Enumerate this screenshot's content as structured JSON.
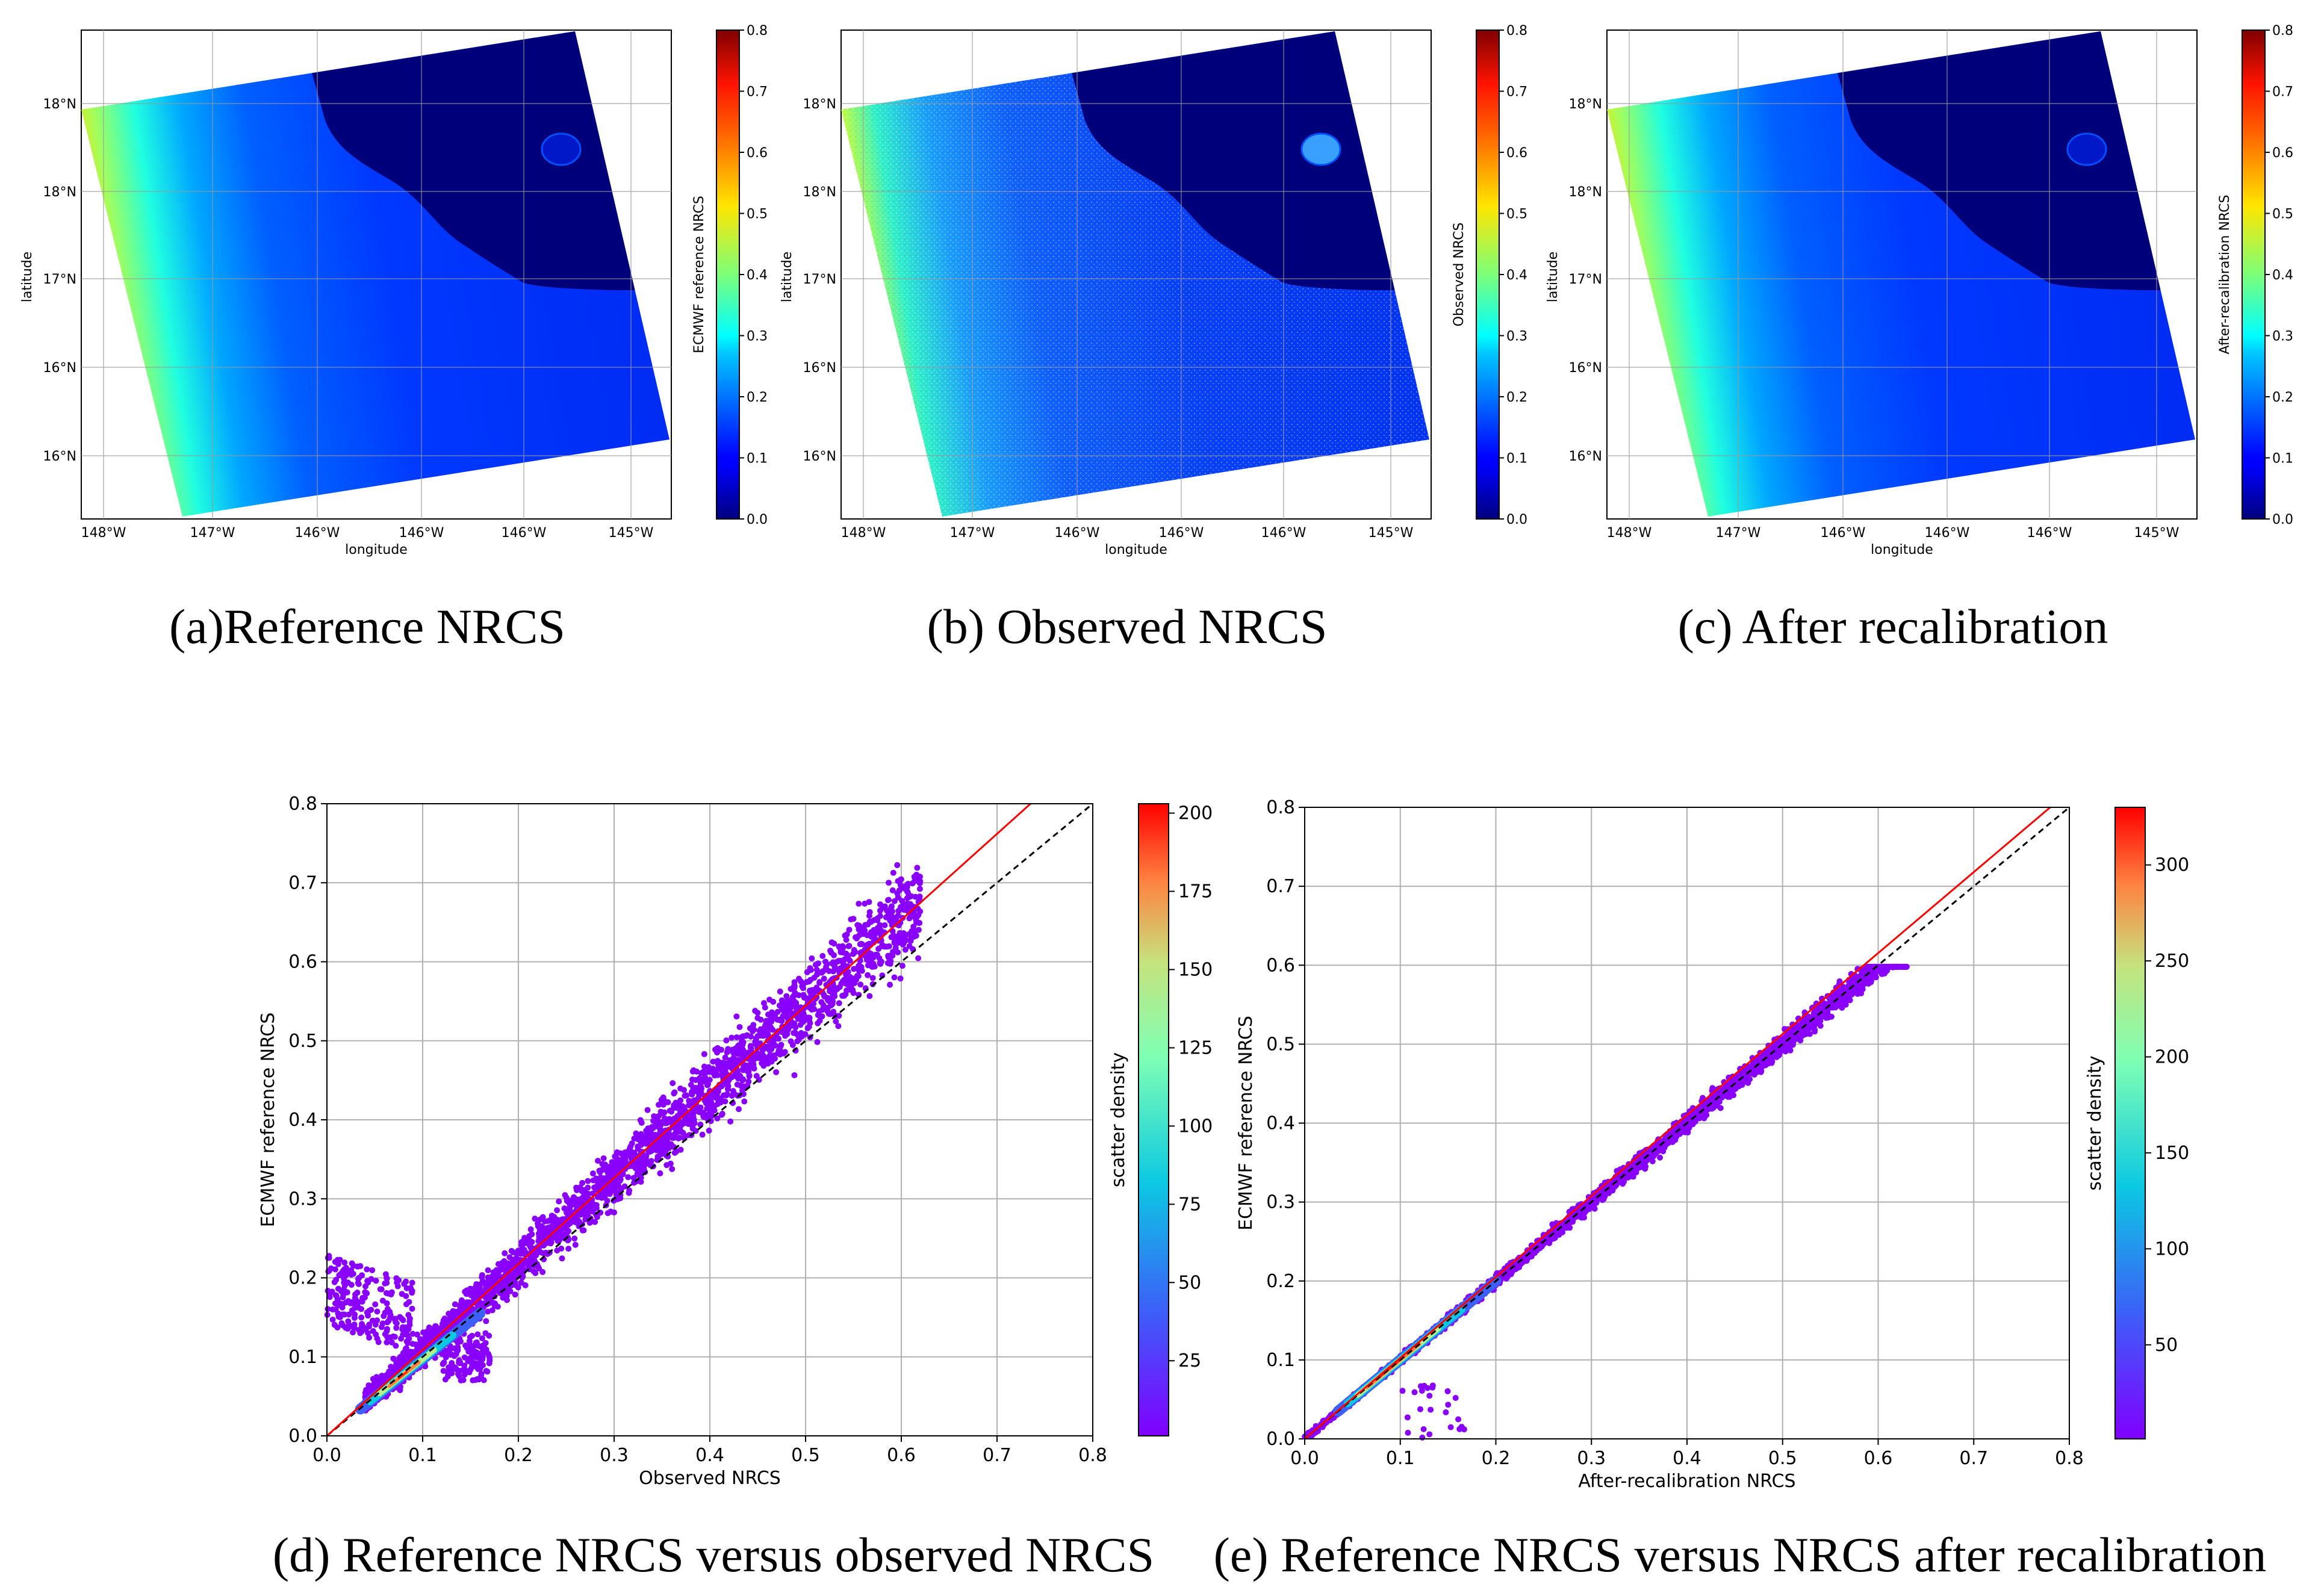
{
  "chart_data": [
    {
      "type": "heatmap",
      "id": "a",
      "caption": "(a)Reference NRCS",
      "xlabel": "longitude",
      "ylabel": "latitude",
      "xticks": [
        "148°W",
        "147°W",
        "146°W",
        "146°W",
        "146°W",
        "145°W"
      ],
      "yticks": [
        "18°N",
        "18°N",
        "17°N",
        "16°N",
        "16°N"
      ],
      "colorbar": {
        "label": "ECMWF reference NRCS",
        "range": [
          0.0,
          0.8
        ],
        "ticks": [
          "0.0",
          "0.1",
          "0.2",
          "0.3",
          "0.4",
          "0.5",
          "0.6",
          "0.7",
          "0.8"
        ]
      }
    },
    {
      "type": "heatmap",
      "id": "b",
      "caption": "(b) Observed NRCS",
      "xlabel": "longitude",
      "ylabel": "latitude",
      "xticks": [
        "148°W",
        "147°W",
        "146°W",
        "146°W",
        "146°W",
        "145°W"
      ],
      "yticks": [
        "18°N",
        "18°N",
        "17°N",
        "16°N",
        "16°N"
      ],
      "colorbar": {
        "label": "Observed NRCS",
        "range": [
          0.0,
          0.8
        ],
        "ticks": [
          "0.0",
          "0.1",
          "0.2",
          "0.3",
          "0.4",
          "0.5",
          "0.6",
          "0.7",
          "0.8"
        ]
      }
    },
    {
      "type": "heatmap",
      "id": "c",
      "caption": "(c) After recalibration",
      "xlabel": "longitude",
      "ylabel": "latitude",
      "xticks": [
        "148°W",
        "147°W",
        "146°W",
        "146°W",
        "146°W",
        "145°W"
      ],
      "yticks": [
        "18°N",
        "18°N",
        "17°N",
        "16°N",
        "16°N"
      ],
      "colorbar": {
        "label": "After-recalibration NRCS",
        "range": [
          0.0,
          0.8
        ],
        "ticks": [
          "0.0",
          "0.1",
          "0.2",
          "0.3",
          "0.4",
          "0.5",
          "0.6",
          "0.7",
          "0.8"
        ]
      }
    },
    {
      "type": "scatter",
      "id": "d",
      "caption": "(d) Reference NRCS versus observed NRCS",
      "xlabel": "Observed NRCS",
      "ylabel": "ECMWF reference NRCS",
      "xlim": [
        0.0,
        0.8
      ],
      "ylim": [
        0.0,
        0.8
      ],
      "xticks": [
        "0.0",
        "0.1",
        "0.2",
        "0.3",
        "0.4",
        "0.5",
        "0.6",
        "0.7",
        "0.8"
      ],
      "yticks": [
        "0.0",
        "0.1",
        "0.2",
        "0.3",
        "0.4",
        "0.5",
        "0.6",
        "0.7",
        "0.8"
      ],
      "fit_line": {
        "color": "red",
        "points": [
          [
            0.0,
            0.0
          ],
          [
            0.735,
            0.8
          ]
        ]
      },
      "identity_line": {
        "style": "dashed",
        "color": "black",
        "points": [
          [
            0.0,
            0.0
          ],
          [
            0.8,
            0.8
          ]
        ]
      },
      "colorbar": {
        "label": "scatter density",
        "range": [
          1,
          203
        ],
        "ticks": [
          "25",
          "50",
          "75",
          "100",
          "125",
          "150",
          "175",
          "200"
        ]
      }
    },
    {
      "type": "scatter",
      "id": "e",
      "caption": "(e) Reference NRCS versus  NRCS after recalibration",
      "xlabel": "After-recalibration NRCS",
      "ylabel": "ECMWF reference NRCS",
      "xlim": [
        0.0,
        0.8
      ],
      "ylim": [
        0.0,
        0.8
      ],
      "xticks": [
        "0.0",
        "0.1",
        "0.2",
        "0.3",
        "0.4",
        "0.5",
        "0.6",
        "0.7",
        "0.8"
      ],
      "yticks": [
        "0.0",
        "0.1",
        "0.2",
        "0.3",
        "0.4",
        "0.5",
        "0.6",
        "0.7",
        "0.8"
      ],
      "fit_line": {
        "color": "red",
        "points": [
          [
            0.0,
            0.0
          ],
          [
            0.78,
            0.8
          ]
        ]
      },
      "identity_line": {
        "style": "dashed",
        "color": "black",
        "points": [
          [
            0.0,
            0.0
          ],
          [
            0.8,
            0.8
          ]
        ]
      },
      "colorbar": {
        "label": "scatter density",
        "range": [
          1,
          330
        ],
        "ticks": [
          "50",
          "100",
          "150",
          "200",
          "250",
          "300"
        ]
      }
    }
  ]
}
